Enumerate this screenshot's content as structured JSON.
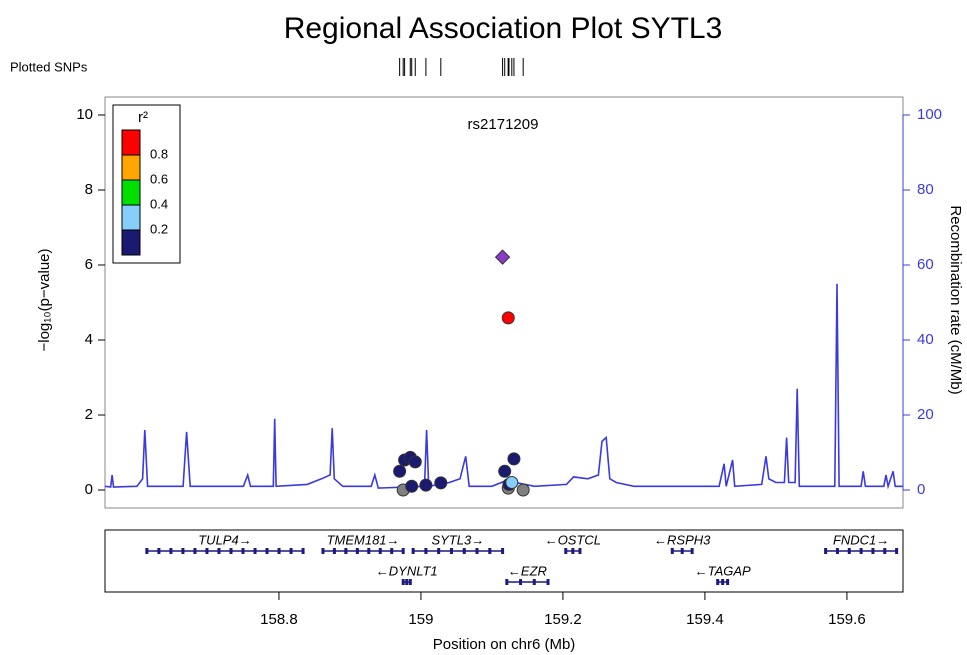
{
  "chart_data": {
    "type": "scatter",
    "title": "Regional Association Plot SYTL3",
    "rug_label": "Plotted SNPs",
    "annotation": "rs2171209",
    "x_label": "Position on chr6 (Mb)",
    "y_label": "−log₁₀(p−value)",
    "y2_label": "Recombination rate (cM/Mb)",
    "xlim": [
      158.555,
      159.679
    ],
    "xticks": [
      158.8,
      159,
      159.2,
      159.4,
      159.6
    ],
    "ylim": [
      -0.48,
      10.48
    ],
    "yticks": [
      0,
      2,
      4,
      6,
      8,
      10
    ],
    "y2lim": [
      -4.8,
      104.8
    ],
    "y2ticks": [
      0,
      20,
      40,
      60,
      80,
      100
    ],
    "axis_color": "#3a3ae0",
    "legend": {
      "title": "r²",
      "colors": [
        "#1a1a70",
        "#87cefa",
        "#00e000",
        "#ffa500",
        "#ff0000"
      ],
      "labels": [
        "0.2",
        "0.4",
        "0.6",
        "0.8"
      ]
    },
    "series": [
      {
        "style": "line",
        "axis": "y2",
        "color": "#3a3ae0",
        "x": [
          158.555,
          158.563,
          158.565,
          158.567,
          158.6,
          158.608,
          158.611,
          158.615,
          158.665,
          158.67,
          158.675,
          158.75,
          158.756,
          158.76,
          158.792,
          158.794,
          158.796,
          158.84,
          158.86,
          158.872,
          158.875,
          158.878,
          158.89,
          158.93,
          158.935,
          158.94,
          159.005,
          159.008,
          159.011,
          159.04,
          159.055,
          159.063,
          159.068,
          159.1,
          159.12,
          159.16,
          159.205,
          159.215,
          159.235,
          159.25,
          159.255,
          159.261,
          159.266,
          159.275,
          159.3,
          159.42,
          159.427,
          159.43,
          159.439,
          159.442,
          159.48,
          159.486,
          159.49,
          159.5,
          159.512,
          159.515,
          159.518,
          159.527,
          159.53,
          159.533,
          159.583,
          159.586,
          159.589,
          159.62,
          159.623,
          159.626,
          159.652,
          159.655,
          159.658,
          159.665,
          159.668,
          159.679
        ],
        "values": [
          1,
          0.8,
          4,
          0.8,
          1,
          3,
          16,
          1,
          1,
          15.5,
          1,
          1,
          4,
          1,
          1,
          19,
          1,
          1.5,
          3,
          4,
          16.5,
          3,
          1,
          1,
          4,
          0.5,
          1,
          16,
          1,
          2,
          3,
          9,
          1,
          1,
          2.5,
          1,
          1.5,
          3.5,
          3,
          4,
          13,
          14,
          3,
          2,
          1,
          1,
          7,
          1,
          8,
          1,
          1.5,
          9,
          3,
          2,
          2,
          14,
          2,
          2,
          27,
          1,
          1,
          55,
          1,
          1,
          5,
          1,
          1,
          4,
          1,
          5,
          1,
          1
        ]
      },
      {
        "style": "points",
        "marker": "circle",
        "color": "#808080",
        "x": [
          158.975,
          159.123,
          159.144
        ],
        "values": [
          0.0,
          0.05,
          0.0
        ]
      },
      {
        "style": "points",
        "marker": "circle",
        "color": "#1a1a70",
        "x": [
          158.97,
          158.977,
          158.985,
          158.992,
          158.987,
          159.007,
          159.028,
          159.118,
          159.131,
          159.124
        ],
        "values": [
          0.5,
          0.8,
          0.87,
          0.75,
          0.1,
          0.13,
          0.19,
          0.5,
          0.83,
          0.15
        ]
      },
      {
        "style": "points",
        "marker": "circle",
        "color": "#87cefa",
        "x": [
          159.128
        ],
        "values": [
          0.2
        ]
      },
      {
        "style": "points",
        "marker": "circle",
        "color": "#ff0000",
        "x": [
          159.123
        ],
        "values": [
          4.59
        ]
      },
      {
        "style": "points",
        "marker": "diamond",
        "color": "#8a3cc8",
        "x": [
          159.115
        ],
        "values": [
          6.21
        ]
      }
    ],
    "genes": [
      {
        "label": "TULP4→",
        "start": 158.614,
        "end": 158.834,
        "row": 1
      },
      {
        "label": "TMEM181→",
        "start": 158.862,
        "end": 158.975,
        "row": 1
      },
      {
        "label": "SYTL3→",
        "start": 158.989,
        "end": 159.115,
        "row": 1
      },
      {
        "label": "←OSTCL",
        "start": 159.204,
        "end": 159.224,
        "row": 1
      },
      {
        "label": "←RSPH3",
        "start": 159.354,
        "end": 159.382,
        "row": 1
      },
      {
        "label": "FNDC1→",
        "start": 159.57,
        "end": 159.67,
        "row": 1
      },
      {
        "label": "←DYNLT1",
        "start": 158.975,
        "end": 158.985,
        "row": 2
      },
      {
        "label": "←EZR",
        "start": 159.121,
        "end": 159.179,
        "row": 2
      },
      {
        "label": "←TAGAP",
        "start": 159.418,
        "end": 159.432,
        "row": 2
      }
    ]
  }
}
